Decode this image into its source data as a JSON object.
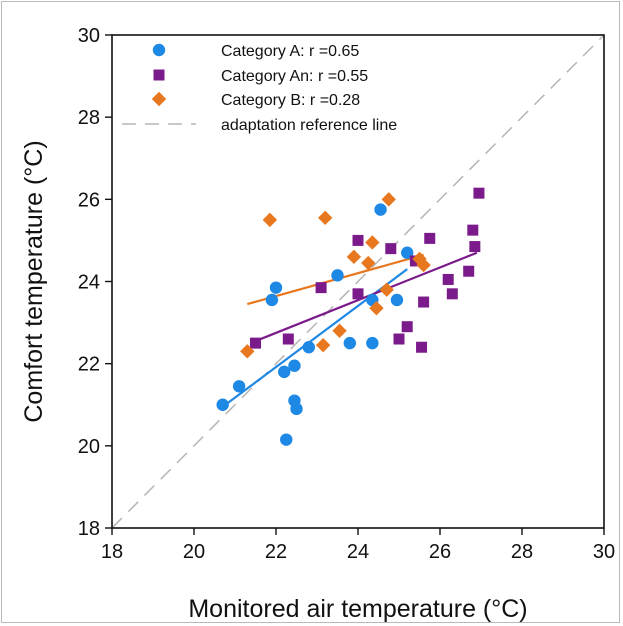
{
  "chart_data": {
    "type": "scatter",
    "xlabel": "Monitored air temperature (°C)",
    "ylabel": "Comfort temperature (°C)",
    "xlim": [
      18,
      30
    ],
    "ylim": [
      18,
      30
    ],
    "xticks": [
      18,
      20,
      22,
      24,
      26,
      28,
      30
    ],
    "yticks": [
      18,
      20,
      22,
      24,
      26,
      28,
      30
    ],
    "grid": false,
    "legend_position": "top-left",
    "series": [
      {
        "name": "Category A: r =0.65",
        "marker": "circle",
        "color": "#1e88e5",
        "points": [
          [
            20.7,
            21.0
          ],
          [
            21.1,
            21.45
          ],
          [
            21.9,
            23.55
          ],
          [
            22.0,
            23.85
          ],
          [
            22.2,
            21.8
          ],
          [
            22.25,
            20.15
          ],
          [
            22.45,
            21.95
          ],
          [
            22.45,
            21.1
          ],
          [
            22.5,
            20.9
          ],
          [
            22.8,
            22.4
          ],
          [
            23.5,
            24.15
          ],
          [
            23.8,
            22.5
          ],
          [
            24.35,
            22.5
          ],
          [
            24.35,
            23.55
          ],
          [
            24.55,
            25.75
          ],
          [
            24.95,
            23.55
          ],
          [
            25.2,
            24.7
          ]
        ],
        "trend": [
          [
            20.7,
            20.95
          ],
          [
            25.2,
            24.3
          ]
        ]
      },
      {
        "name": "Category An: r =0.55",
        "marker": "square",
        "color": "#7b1a8a",
        "points": [
          [
            21.5,
            22.5
          ],
          [
            22.3,
            22.6
          ],
          [
            23.1,
            23.85
          ],
          [
            24.0,
            25.0
          ],
          [
            24.0,
            23.7
          ],
          [
            24.8,
            24.8
          ],
          [
            25.0,
            22.6
          ],
          [
            25.2,
            22.9
          ],
          [
            25.4,
            24.5
          ],
          [
            25.55,
            22.4
          ],
          [
            25.6,
            23.5
          ],
          [
            25.75,
            25.05
          ],
          [
            26.2,
            24.05
          ],
          [
            26.3,
            23.7
          ],
          [
            26.7,
            24.25
          ],
          [
            26.8,
            25.25
          ],
          [
            26.85,
            24.85
          ],
          [
            26.95,
            26.15
          ]
        ],
        "trend": [
          [
            21.5,
            22.55
          ],
          [
            26.9,
            24.7
          ]
        ]
      },
      {
        "name": "Category B: r =0.28",
        "marker": "diamond",
        "color": "#e8781f",
        "points": [
          [
            21.3,
            22.3
          ],
          [
            21.85,
            25.5
          ],
          [
            23.15,
            22.45
          ],
          [
            23.2,
            25.55
          ],
          [
            23.55,
            22.8
          ],
          [
            23.9,
            24.6
          ],
          [
            24.25,
            24.45
          ],
          [
            24.35,
            24.95
          ],
          [
            24.45,
            23.35
          ],
          [
            24.7,
            23.8
          ],
          [
            24.75,
            26.0
          ],
          [
            25.5,
            24.55
          ],
          [
            25.6,
            24.4
          ]
        ],
        "trend": [
          [
            21.3,
            23.45
          ],
          [
            25.6,
            24.65
          ]
        ]
      }
    ],
    "reference_line": {
      "name": "adaptation reference line",
      "style": "dashed",
      "color": "#b5b5b5",
      "points": [
        [
          18,
          18
        ],
        [
          30,
          30
        ]
      ]
    }
  }
}
